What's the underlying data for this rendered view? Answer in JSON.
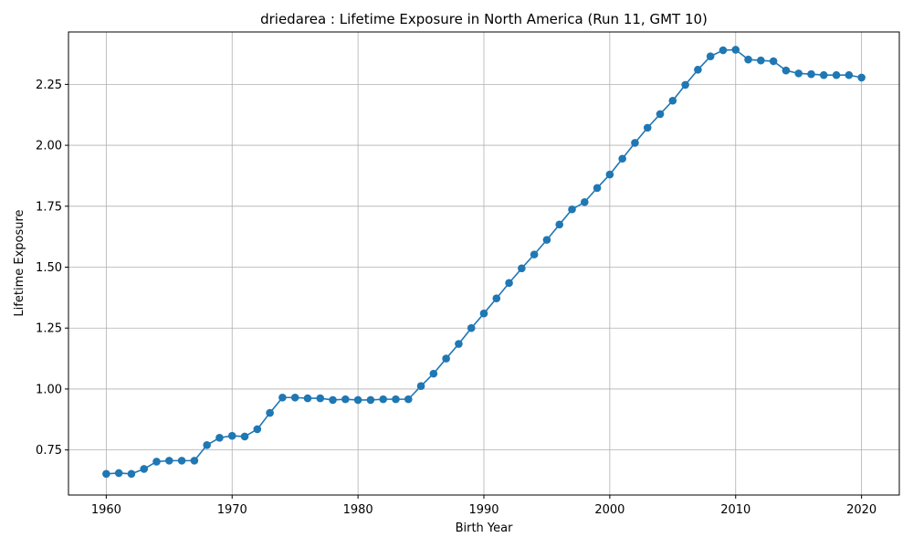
{
  "chart_data": {
    "type": "line",
    "title": "driedarea : Lifetime Exposure in North America (Run 11, GMT 10)",
    "xlabel": "Birth Year",
    "ylabel": "Lifetime Exposure",
    "xlim": [
      1957,
      2023
    ],
    "ylim": [
      0.565,
      2.465
    ],
    "xticks": [
      1960,
      1970,
      1980,
      1990,
      2000,
      2010,
      2020
    ],
    "yticks": [
      0.75,
      1.0,
      1.25,
      1.5,
      1.75,
      2.0,
      2.25
    ],
    "ytick_labels": [
      "0.75",
      "1.00",
      "1.25",
      "1.50",
      "1.75",
      "2.00",
      "2.25"
    ],
    "grid": true,
    "color": "#1f77b4",
    "series": [
      {
        "x": [
          1960,
          1961,
          1962,
          1963,
          1964,
          1965,
          1966,
          1967,
          1968,
          1969,
          1970,
          1971,
          1972,
          1973,
          1974,
          1975,
          1976,
          1977,
          1978,
          1979,
          1980,
          1981,
          1982,
          1983,
          1984,
          1985,
          1986,
          1987,
          1988,
          1989,
          1990,
          1991,
          1992,
          1993,
          1994,
          1995,
          1996,
          1997,
          1998,
          1999,
          2000,
          2001,
          2002,
          2003,
          2004,
          2005,
          2006,
          2007,
          2008,
          2009,
          2010,
          2011,
          2012,
          2013,
          2014,
          2015,
          2016,
          2017,
          2018,
          2019,
          2020
        ],
        "values": [
          0.652,
          0.655,
          0.652,
          0.672,
          0.702,
          0.706,
          0.706,
          0.706,
          0.77,
          0.8,
          0.808,
          0.805,
          0.835,
          0.902,
          0.965,
          0.965,
          0.962,
          0.962,
          0.955,
          0.958,
          0.955,
          0.955,
          0.958,
          0.958,
          0.958,
          1.012,
          1.063,
          1.125,
          1.185,
          1.25,
          1.31,
          1.372,
          1.435,
          1.495,
          1.552,
          1.612,
          1.675,
          1.737,
          1.767,
          1.825,
          1.88,
          1.945,
          2.01,
          2.072,
          2.128,
          2.183,
          2.248,
          2.31,
          2.365,
          2.39,
          2.392,
          2.352,
          2.348,
          2.345,
          2.307,
          2.295,
          2.292,
          2.288,
          2.288,
          2.288,
          2.278
        ]
      }
    ]
  }
}
